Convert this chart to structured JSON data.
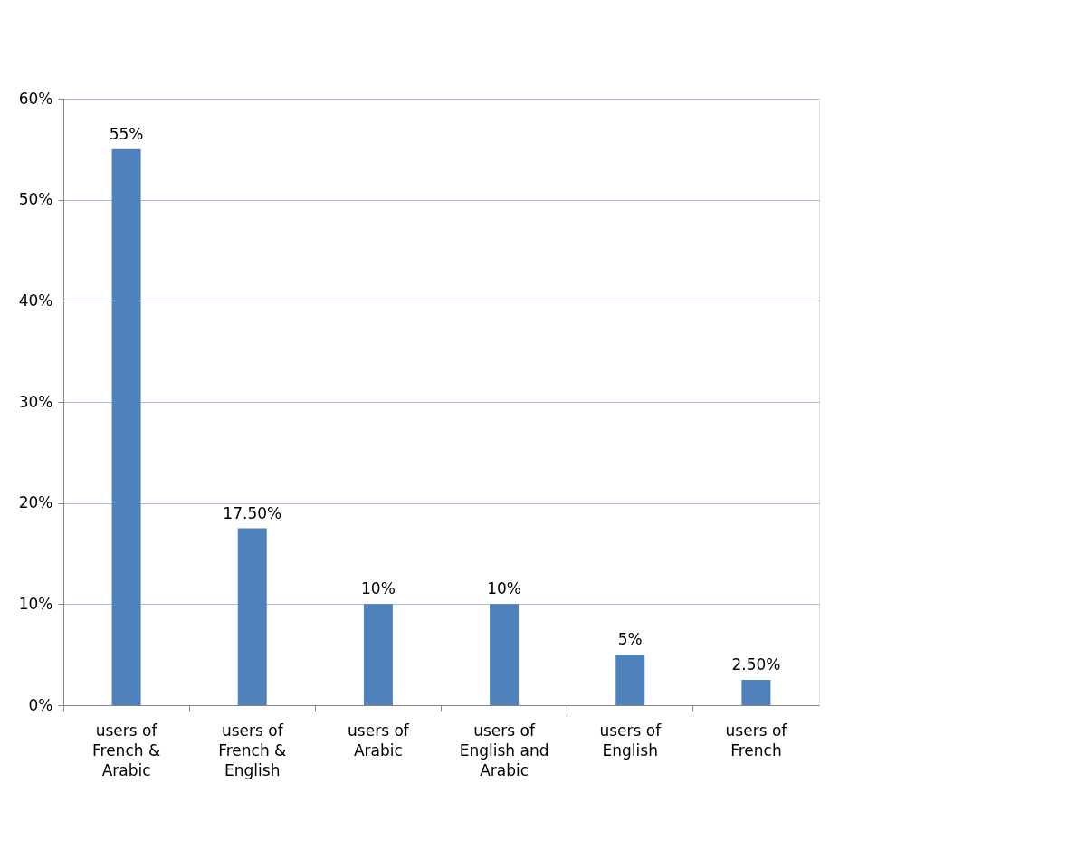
{
  "chart_data": {
    "type": "bar",
    "categories": [
      "users of French & Arabic",
      "users of French & English",
      "users of Arabic",
      "users of English and Arabic",
      "users of English",
      "users of French"
    ],
    "values": [
      55,
      17.5,
      10,
      10,
      5,
      2.5
    ],
    "value_labels": [
      "55%",
      "17.50%",
      "10%",
      "10%",
      "5%",
      "2.50%"
    ],
    "color": "#4f81bd",
    "ylim": [
      0,
      60
    ],
    "yticks": [
      {
        "value": 0,
        "label": "0%"
      },
      {
        "value": 10,
        "label": "10%"
      },
      {
        "value": 20,
        "label": "20%"
      },
      {
        "value": 30,
        "label": "30%"
      },
      {
        "value": 40,
        "label": "40%"
      },
      {
        "value": 50,
        "label": "50%"
      },
      {
        "value": 60,
        "label": "60%"
      }
    ],
    "grid": "y"
  }
}
